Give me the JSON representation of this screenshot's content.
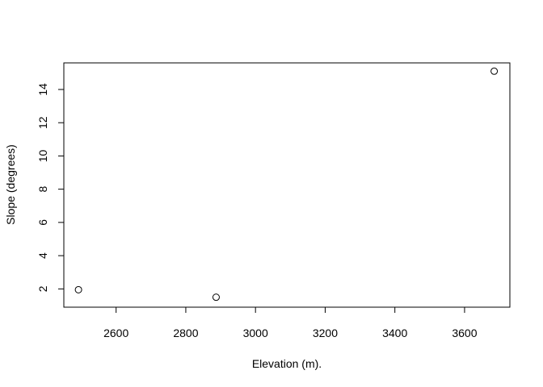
{
  "chart_data": {
    "type": "scatter",
    "title": "",
    "xlabel": "Elevation (m).",
    "ylabel": "Slope (degrees)",
    "xlim": [
      2450,
      3730
    ],
    "ylim": [
      0.9,
      15.6
    ],
    "x_ticks": [
      2600,
      2800,
      3000,
      3200,
      3400,
      3600
    ],
    "y_ticks": [
      2,
      4,
      6,
      8,
      10,
      12,
      14
    ],
    "grid": false,
    "legend": "none",
    "marker": "open-circle",
    "points": [
      {
        "x": 2492,
        "y": 1.95
      },
      {
        "x": 2887,
        "y": 1.5
      },
      {
        "x": 3685,
        "y": 15.1
      }
    ]
  }
}
